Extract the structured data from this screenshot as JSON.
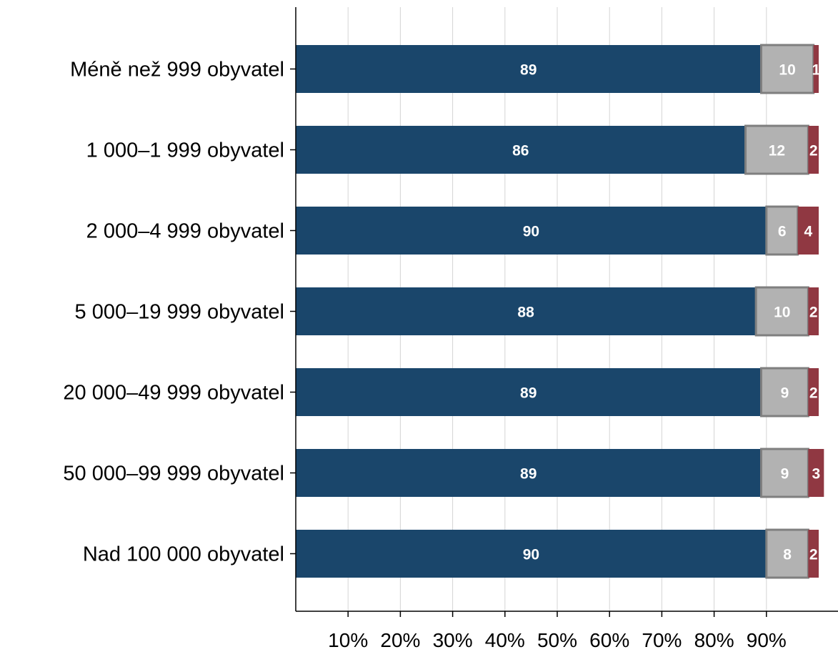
{
  "chart_data": {
    "type": "bar",
    "orientation": "horizontal",
    "stacked": true,
    "title": "",
    "xlabel": "",
    "ylabel": "",
    "xlim": [
      0,
      100
    ],
    "x_ticks": [
      10,
      20,
      30,
      40,
      50,
      60,
      70,
      80,
      90
    ],
    "x_tick_labels": [
      "10%",
      "20%",
      "30%",
      "40%",
      "50%",
      "60%",
      "70%",
      "80%",
      "90%"
    ],
    "grid": true,
    "legend": "none",
    "categories": [
      "Méně než 999 obyvatel",
      "1 000–1 999 obyvatel",
      "2 000–4 999 obyvatel",
      "5 000–19 999 obyvatel",
      "20 000–49 999 obyvatel",
      "50 000–99 999 obyvatel",
      "Nad 100 000 obyvatel"
    ],
    "series": [
      {
        "values": [
          89,
          86,
          90,
          88,
          89,
          89,
          90
        ],
        "color": "#1a466b",
        "label_color": "#ffffff"
      },
      {
        "values": [
          10,
          12,
          6,
          10,
          9,
          9,
          8
        ],
        "color": "#b2b2b2",
        "border_color": "#7f7f7f",
        "label_color": "#ffffff"
      },
      {
        "values": [
          1,
          2,
          4,
          2,
          2,
          3,
          2
        ],
        "color": "#903842",
        "label_color": "#ffffff"
      }
    ]
  }
}
